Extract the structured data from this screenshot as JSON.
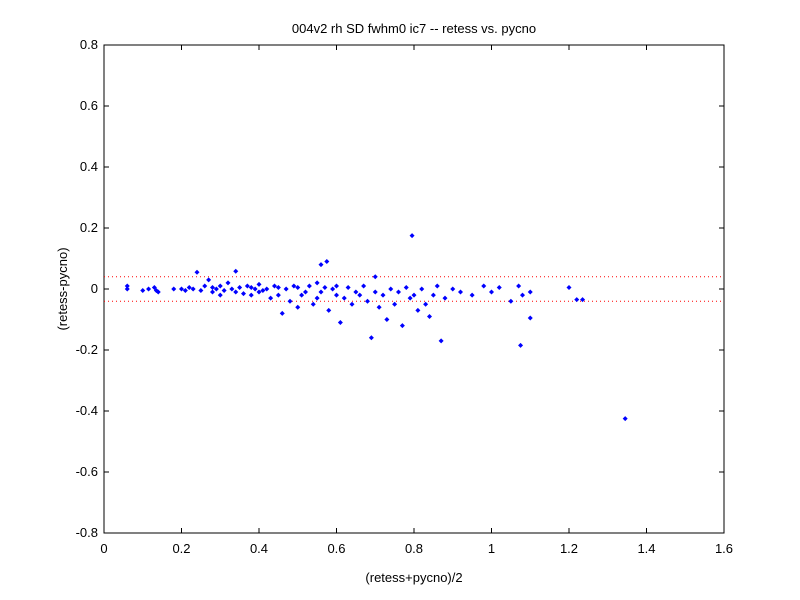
{
  "chart_data": {
    "type": "scatter",
    "title": "004v2 rh SD fwhm0 ic7 -- retess vs. pycno",
    "xlabel": "(retess+pycno)/2",
    "ylabel": "(retess-pycno)",
    "xlim": [
      0,
      1.6
    ],
    "ylim": [
      -0.8,
      0.8
    ],
    "xticks": [
      0,
      0.2,
      0.4,
      0.6,
      0.8,
      1,
      1.2,
      1.4,
      1.6
    ],
    "yticks": [
      -0.8,
      -0.6,
      -0.4,
      -0.2,
      0,
      0.2,
      0.4,
      0.6,
      0.8
    ],
    "hlines": [
      0.04,
      -0.04
    ],
    "hline_color": "#ff0000",
    "series": [
      {
        "color": "#0000ff",
        "x": [
          0.06,
          0.06,
          0.1,
          0.115,
          0.13,
          0.135,
          0.14,
          0.18,
          0.2,
          0.21,
          0.22,
          0.23,
          0.24,
          0.25,
          0.26,
          0.27,
          0.28,
          0.28,
          0.29,
          0.3,
          0.3,
          0.31,
          0.32,
          0.33,
          0.34,
          0.34,
          0.35,
          0.36,
          0.37,
          0.38,
          0.38,
          0.39,
          0.4,
          0.4,
          0.41,
          0.42,
          0.43,
          0.44,
          0.45,
          0.45,
          0.46,
          0.47,
          0.48,
          0.49,
          0.5,
          0.5,
          0.51,
          0.52,
          0.53,
          0.54,
          0.55,
          0.55,
          0.56,
          0.56,
          0.57,
          0.575,
          0.58,
          0.59,
          0.6,
          0.6,
          0.61,
          0.62,
          0.63,
          0.64,
          0.65,
          0.66,
          0.67,
          0.68,
          0.69,
          0.7,
          0.7,
          0.71,
          0.72,
          0.73,
          0.74,
          0.75,
          0.76,
          0.77,
          0.78,
          0.79,
          0.795,
          0.8,
          0.81,
          0.82,
          0.83,
          0.84,
          0.85,
          0.86,
          0.87,
          0.88,
          0.9,
          0.92,
          0.95,
          0.98,
          1.0,
          1.02,
          1.05,
          1.07,
          1.075,
          1.08,
          1.1,
          1.1,
          1.2,
          1.22,
          1.235,
          1.345
        ],
        "y": [
          0.01,
          0,
          -0.005,
          0,
          0.005,
          -0.005,
          -0.01,
          0,
          0,
          -0.005,
          0.005,
          0,
          0.055,
          -0.005,
          0.01,
          0.03,
          -0.01,
          0.005,
          0,
          -0.02,
          0.01,
          -0.005,
          0.02,
          0,
          0.058,
          -0.01,
          0.005,
          -0.015,
          0.01,
          -0.02,
          0.005,
          0,
          -0.01,
          0.015,
          -0.005,
          0,
          -0.03,
          0.01,
          -0.02,
          0.005,
          -0.08,
          0,
          -0.04,
          0.01,
          -0.06,
          0.005,
          -0.02,
          -0.01,
          0.01,
          -0.05,
          -0.03,
          0.02,
          0.08,
          -0.01,
          0.005,
          0.09,
          -0.07,
          0,
          -0.02,
          0.01,
          -0.11,
          -0.03,
          0.005,
          -0.05,
          -0.01,
          -0.02,
          0.01,
          -0.04,
          -0.16,
          -0.01,
          0.04,
          -0.06,
          -0.02,
          -0.1,
          0,
          -0.05,
          -0.01,
          -0.12,
          0.005,
          -0.03,
          0.175,
          -0.02,
          -0.07,
          0,
          -0.05,
          -0.09,
          -0.02,
          0.01,
          -0.17,
          -0.03,
          0,
          -0.01,
          -0.02,
          0.01,
          -0.01,
          0.005,
          -0.04,
          0.01,
          -0.185,
          -0.02,
          -0.01,
          -0.095,
          0.005,
          -0.035,
          -0.035,
          -0.425
        ]
      }
    ]
  }
}
